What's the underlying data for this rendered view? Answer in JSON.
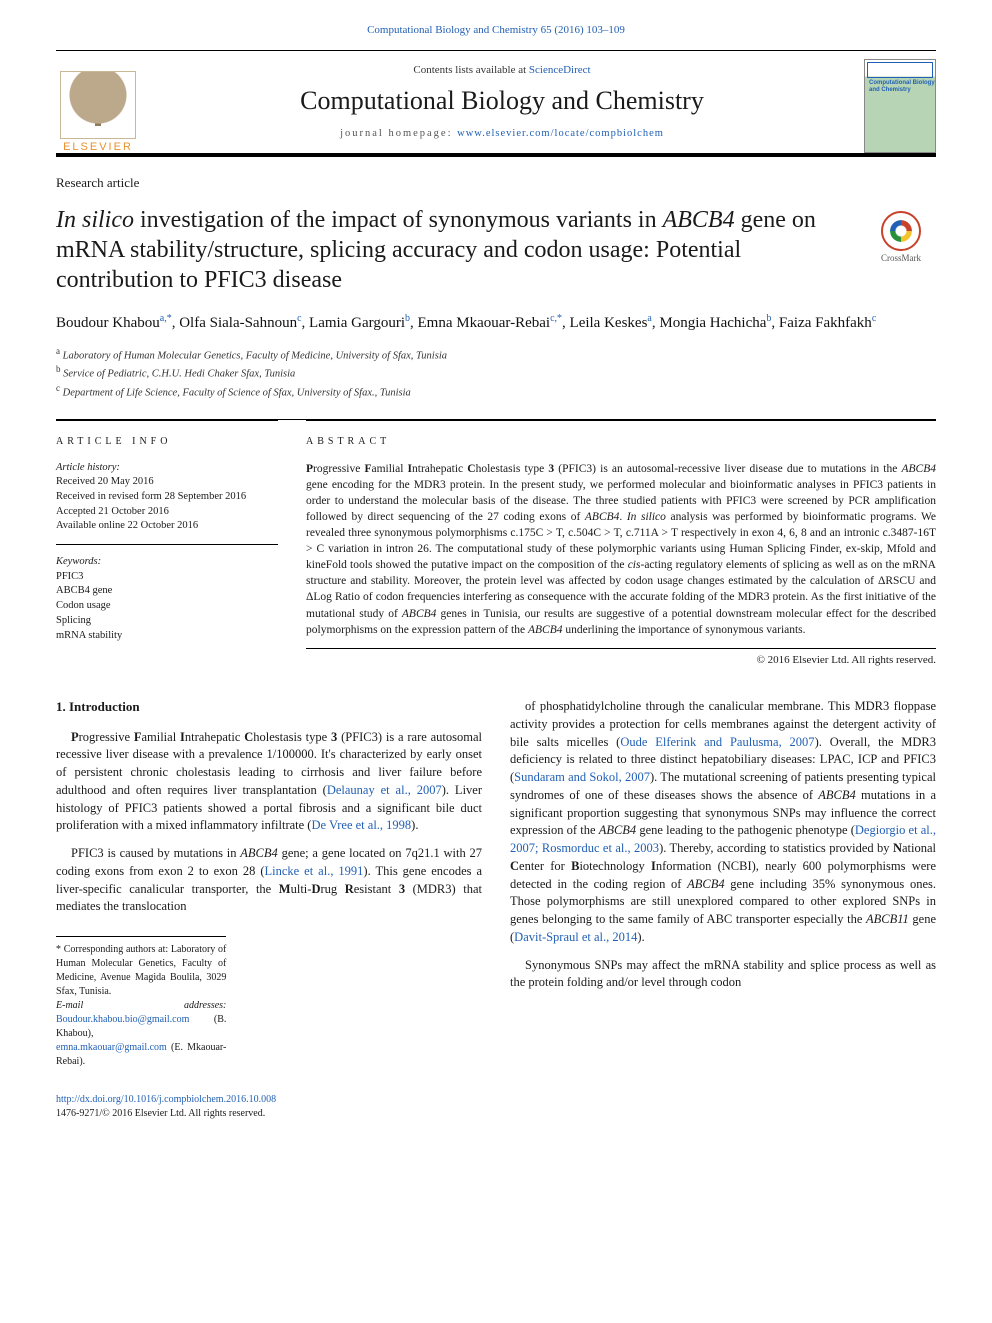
{
  "top_citation": "Computational Biology and Chemistry 65 (2016) 103–109",
  "header": {
    "contents_prefix": "Contents lists available at ",
    "contents_link": "ScienceDirect",
    "journal_name": "Computational Biology and Chemistry",
    "homepage_prefix": "journal homepage: ",
    "homepage_url": "www.elsevier.com/locate/compbiolchem",
    "elsevier": "ELSEVIER",
    "cover_text": "Computational\nBiology and\nChemistry"
  },
  "article_type": "Research article",
  "title_html": "<span class='ital'>In silico</span> investigation of the impact of synonymous variants in <span class='ital'>ABCB4</span> gene on mRNA stability/structure, splicing accuracy and codon usage: Potential contribution to PFIC3 disease",
  "crossmark_label": "CrossMark",
  "authors": [
    {
      "name": "Boudour Khabou",
      "sup": "a,*"
    },
    {
      "name": "Olfa Siala-Sahnoun",
      "sup": "c"
    },
    {
      "name": "Lamia Gargouri",
      "sup": "b"
    },
    {
      "name": "Emna Mkaouar-Rebai",
      "sup": "c,*"
    },
    {
      "name": "Leila Keskes",
      "sup": "a"
    },
    {
      "name": "Mongia Hachicha",
      "sup": "b"
    },
    {
      "name": "Faiza Fakhfakh",
      "sup": "c"
    }
  ],
  "affiliations": [
    {
      "sup": "a",
      "text": "Laboratory of Human Molecular Genetics, Faculty of Medicine, University of Sfax, Tunisia"
    },
    {
      "sup": "b",
      "text": "Service of Pediatric, C.H.U. Hedi Chaker Sfax, Tunisia"
    },
    {
      "sup": "c",
      "text": "Department of Life Science, Faculty of Science of Sfax, University of Sfax., Tunisia"
    }
  ],
  "article_info": {
    "heading": "ARTICLE INFO",
    "history_hd": "Article history:",
    "history": [
      "Received 20 May 2016",
      "Received in revised form 28 September 2016",
      "Accepted 21 October 2016",
      "Available online 22 October 2016"
    ],
    "keywords_hd": "Keywords:",
    "keywords": [
      "PFIC3",
      "ABCB4 gene",
      "Codon usage",
      "Splicing",
      "mRNA stability"
    ]
  },
  "abstract": {
    "heading": "ABSTRACT",
    "text_html": "<b>P</b>rogressive <b>F</b>amilial <b>I</b>ntrahepatic <b>C</b>holestasis type <b>3</b> (PFIC3) is an autosomal-recessive liver disease due to mutations in the <span class='ital'>ABCB4</span> gene encoding for the MDR3 protein. In the present study, we performed molecular and bioinformatic analyses in PFIC3 patients in order to understand the molecular basis of the disease. The three studied patients with PFIC3 were screened by PCR amplification followed by direct sequencing of the 27 coding exons of <span class='ital'>ABCB4</span>. <span class='ital'>In silico</span> analysis was performed by bioinformatic programs. We revealed three synonymous polymorphisms c.175C > T, c.504C > T, c.711A > T respectively in exon 4, 6, 8 and an intronic c.3487-16T > C variation in intron 26. The computational study of these polymorphic variants using Human Splicing Finder, ex-skip, Mfold and kineFold tools showed the putative impact on the composition of the <span class='ital'>cis</span>-acting regulatory elements of splicing as well as on the mRNA structure and stability. Moreover, the protein level was affected by codon usage changes estimated by the calculation of ΔRSCU and ΔLog Ratio of codon frequencies interfering as consequence with the accurate folding of the MDR3 protein. As the first initiative of the mutational study of <span class='ital'>ABCB4</span> genes in Tunisia, our results are suggestive of a potential downstream molecular effect for the described polymorphisms on the expression pattern of the <span class='ital'>ABCB4</span> underlining the importance of synonymous variants.",
    "copyright": "© 2016 Elsevier Ltd. All rights reserved."
  },
  "body": {
    "section_heading": "1. Introduction",
    "p1_html": "<b>P</b>rogressive <b>F</b>amilial <b>I</b>ntrahepatic <b>C</b>holestasis type <b>3</b> (PFIC3) is a rare autosomal recessive liver disease with a prevalence 1/100000. It's characterized by early onset of persistent chronic cholestasis leading to cirrhosis and liver failure before adulthood and often requires liver transplantation (<span class='ref'>Delaunay et al., 2007</span>). Liver histology of PFIC3 patients showed a portal fibrosis and a significant bile duct proliferation with a mixed inflammatory infiltrate (<span class='ref'>De Vree et al., 1998</span>).",
    "p2_html": "PFIC3 is caused by mutations in <span class='ital'>ABCB4</span> gene; a gene located on 7q21.1 with 27 coding exons from exon 2 to exon 28 (<span class='ref'>Lincke et al., 1991</span>). This gene encodes a liver-specific canalicular transporter, the <b>M</b>ulti-<b>D</b>rug <b>R</b>esistant <b>3</b> (MDR3) that mediates the translocation",
    "p3_html": "of phosphatidylcholine through the canalicular membrane. This MDR3 floppase activity provides a protection for cells membranes against the detergent activity of bile salts micelles (<span class='ref'>Oude Elferink and Paulusma, 2007</span>). Overall, the MDR3 deficiency is related to three distinct hepatobiliary diseases: LPAC, ICP and PFIC3 (<span class='ref'>Sundaram and Sokol, 2007</span>). The mutational screening of patients presenting typical syndromes of one of these diseases shows the absence of <span class='ital'>ABCB4</span> mutations in a significant proportion suggesting that synonymous SNPs may influence the correct expression of the <span class='ital'>ABCB4</span> gene leading to the pathogenic phenotype (<span class='ref'>Degiorgio et al., 2007; Rosmorduc et al., 2003</span>). Thereby, according to statistics provided by <b>N</b>ational <b>C</b>enter for <b>B</b>iotechnology <b>I</b>nformation (NCBI), nearly 600 polymorphisms were detected in the coding region of <span class='ital'>ABCB4</span> gene including 35% synonymous ones. Those polymorphisms are still unexplored compared to other explored SNPs in genes belonging to the same family of ABC transporter especially the <span class='ital'>ABCB11</span> gene (<span class='ref'>Davit-Spraul et al., 2014</span>).",
    "p4_html": "Synonymous SNPs may affect the mRNA stability and splice process as well as the protein folding and/or level through codon"
  },
  "footnotes": {
    "corr": "* Corresponding authors at: Laboratory of Human Molecular Genetics, Faculty of Medicine, Avenue Magida Boulila, 3029 Sfax, Tunisia.",
    "emails_label": "E-mail addresses: ",
    "email1": "Boudour.khabou.bio@gmail.com",
    "email1_who": " (B. Khabou), ",
    "email2": "emna.mkaouar@gmail.com",
    "email2_who": " (E. Mkaouar-Rebai)."
  },
  "bottom": {
    "doi": "http://dx.doi.org/10.1016/j.compbiolchem.2016.10.008",
    "issn_line": "1476-9271/© 2016 Elsevier Ltd. All rights reserved."
  },
  "colors": {
    "link": "#2260b5",
    "text": "#1a1a1a",
    "elsevier_orange": "#e8912c"
  }
}
